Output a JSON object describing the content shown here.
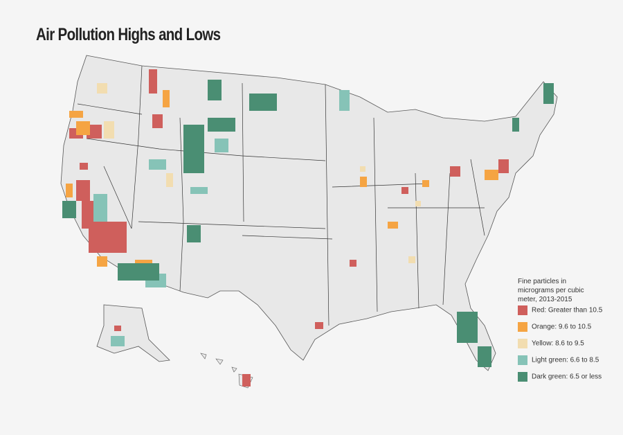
{
  "header": {
    "title": "Air Pollution Highs and Lows"
  },
  "legend": {
    "title": "Fine particles in micrograms per cubic meter, 2013-2015",
    "items": [
      {
        "label": "Red: Greater than 10.5",
        "color": "#cf5f5c"
      },
      {
        "label": "Orange: 9.6 to 10.5",
        "color": "#f5a443"
      },
      {
        "label": "Yellow: 8.6 to 9.5",
        "color": "#f2ddb0"
      },
      {
        "label": "Light green: 6.6 to 8.5",
        "color": "#86c3b7"
      },
      {
        "label": "Dark green: 6.5 or less",
        "color": "#4a8e73"
      }
    ]
  }
}
